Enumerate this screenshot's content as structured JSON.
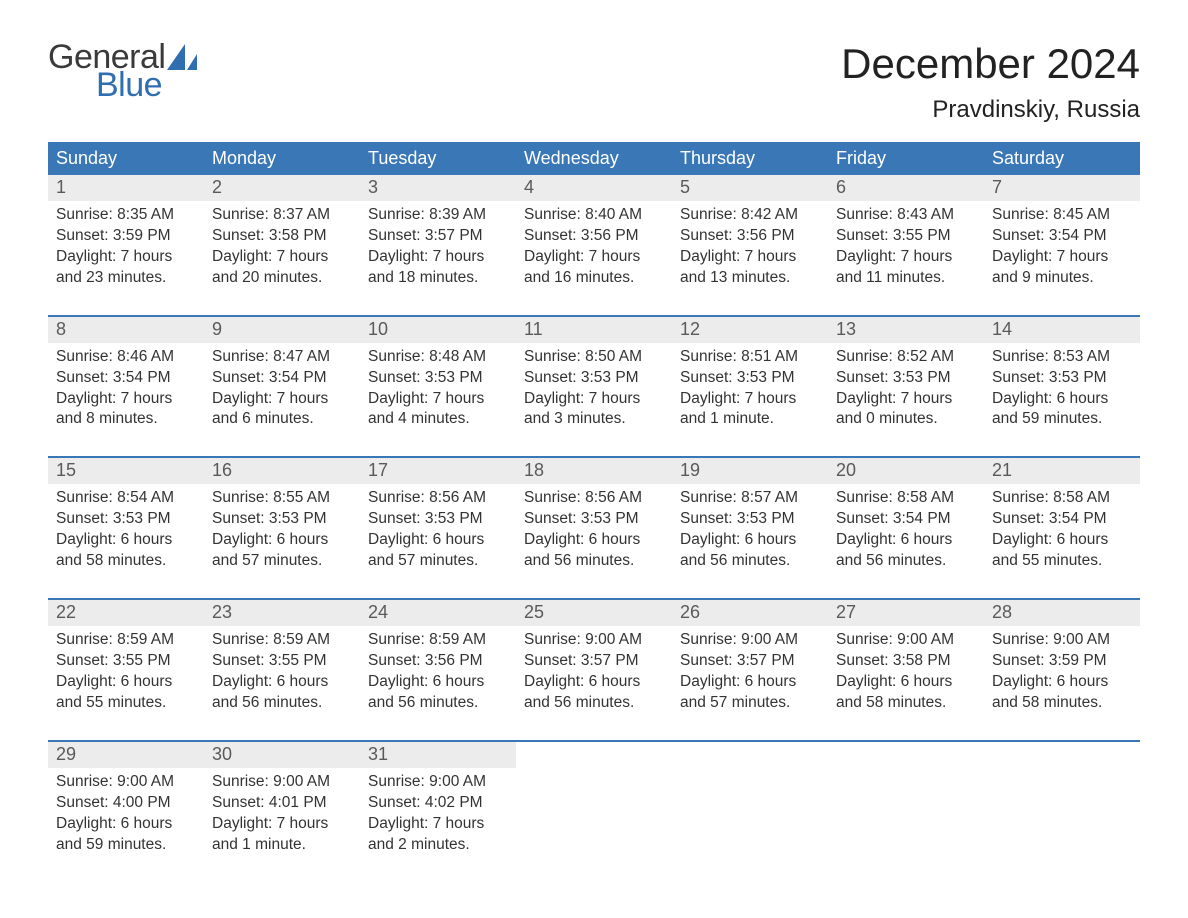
{
  "logo": {
    "text_general": "General",
    "text_blue": "Blue",
    "sail_color": "#2f6fb0",
    "general_color": "#3a3a3a",
    "blue_color": "#2f6fb0"
  },
  "title": "December 2024",
  "location": "Pravdinskiy, Russia",
  "colors": {
    "header_bg": "#3a77b6",
    "header_text": "#ffffff",
    "daynum_bg": "#ececec",
    "daynum_text": "#5a5a5a",
    "body_text": "#333333",
    "week_border": "#3a77b6",
    "page_bg": "#ffffff"
  },
  "typography": {
    "title_fontsize": 42,
    "location_fontsize": 24,
    "dayheader_fontsize": 18,
    "daynum_fontsize": 18,
    "body_fontsize": 15.5,
    "logo_fontsize": 34
  },
  "day_names": [
    "Sunday",
    "Monday",
    "Tuesday",
    "Wednesday",
    "Thursday",
    "Friday",
    "Saturday"
  ],
  "weeks": [
    [
      {
        "n": "1",
        "sunrise": "Sunrise: 8:35 AM",
        "sunset": "Sunset: 3:59 PM",
        "day1": "Daylight: 7 hours",
        "day2": "and 23 minutes."
      },
      {
        "n": "2",
        "sunrise": "Sunrise: 8:37 AM",
        "sunset": "Sunset: 3:58 PM",
        "day1": "Daylight: 7 hours",
        "day2": "and 20 minutes."
      },
      {
        "n": "3",
        "sunrise": "Sunrise: 8:39 AM",
        "sunset": "Sunset: 3:57 PM",
        "day1": "Daylight: 7 hours",
        "day2": "and 18 minutes."
      },
      {
        "n": "4",
        "sunrise": "Sunrise: 8:40 AM",
        "sunset": "Sunset: 3:56 PM",
        "day1": "Daylight: 7 hours",
        "day2": "and 16 minutes."
      },
      {
        "n": "5",
        "sunrise": "Sunrise: 8:42 AM",
        "sunset": "Sunset: 3:56 PM",
        "day1": "Daylight: 7 hours",
        "day2": "and 13 minutes."
      },
      {
        "n": "6",
        "sunrise": "Sunrise: 8:43 AM",
        "sunset": "Sunset: 3:55 PM",
        "day1": "Daylight: 7 hours",
        "day2": "and 11 minutes."
      },
      {
        "n": "7",
        "sunrise": "Sunrise: 8:45 AM",
        "sunset": "Sunset: 3:54 PM",
        "day1": "Daylight: 7 hours",
        "day2": "and 9 minutes."
      }
    ],
    [
      {
        "n": "8",
        "sunrise": "Sunrise: 8:46 AM",
        "sunset": "Sunset: 3:54 PM",
        "day1": "Daylight: 7 hours",
        "day2": "and 8 minutes."
      },
      {
        "n": "9",
        "sunrise": "Sunrise: 8:47 AM",
        "sunset": "Sunset: 3:54 PM",
        "day1": "Daylight: 7 hours",
        "day2": "and 6 minutes."
      },
      {
        "n": "10",
        "sunrise": "Sunrise: 8:48 AM",
        "sunset": "Sunset: 3:53 PM",
        "day1": "Daylight: 7 hours",
        "day2": "and 4 minutes."
      },
      {
        "n": "11",
        "sunrise": "Sunrise: 8:50 AM",
        "sunset": "Sunset: 3:53 PM",
        "day1": "Daylight: 7 hours",
        "day2": "and 3 minutes."
      },
      {
        "n": "12",
        "sunrise": "Sunrise: 8:51 AM",
        "sunset": "Sunset: 3:53 PM",
        "day1": "Daylight: 7 hours",
        "day2": "and 1 minute."
      },
      {
        "n": "13",
        "sunrise": "Sunrise: 8:52 AM",
        "sunset": "Sunset: 3:53 PM",
        "day1": "Daylight: 7 hours",
        "day2": "and 0 minutes."
      },
      {
        "n": "14",
        "sunrise": "Sunrise: 8:53 AM",
        "sunset": "Sunset: 3:53 PM",
        "day1": "Daylight: 6 hours",
        "day2": "and 59 minutes."
      }
    ],
    [
      {
        "n": "15",
        "sunrise": "Sunrise: 8:54 AM",
        "sunset": "Sunset: 3:53 PM",
        "day1": "Daylight: 6 hours",
        "day2": "and 58 minutes."
      },
      {
        "n": "16",
        "sunrise": "Sunrise: 8:55 AM",
        "sunset": "Sunset: 3:53 PM",
        "day1": "Daylight: 6 hours",
        "day2": "and 57 minutes."
      },
      {
        "n": "17",
        "sunrise": "Sunrise: 8:56 AM",
        "sunset": "Sunset: 3:53 PM",
        "day1": "Daylight: 6 hours",
        "day2": "and 57 minutes."
      },
      {
        "n": "18",
        "sunrise": "Sunrise: 8:56 AM",
        "sunset": "Sunset: 3:53 PM",
        "day1": "Daylight: 6 hours",
        "day2": "and 56 minutes."
      },
      {
        "n": "19",
        "sunrise": "Sunrise: 8:57 AM",
        "sunset": "Sunset: 3:53 PM",
        "day1": "Daylight: 6 hours",
        "day2": "and 56 minutes."
      },
      {
        "n": "20",
        "sunrise": "Sunrise: 8:58 AM",
        "sunset": "Sunset: 3:54 PM",
        "day1": "Daylight: 6 hours",
        "day2": "and 56 minutes."
      },
      {
        "n": "21",
        "sunrise": "Sunrise: 8:58 AM",
        "sunset": "Sunset: 3:54 PM",
        "day1": "Daylight: 6 hours",
        "day2": "and 55 minutes."
      }
    ],
    [
      {
        "n": "22",
        "sunrise": "Sunrise: 8:59 AM",
        "sunset": "Sunset: 3:55 PM",
        "day1": "Daylight: 6 hours",
        "day2": "and 55 minutes."
      },
      {
        "n": "23",
        "sunrise": "Sunrise: 8:59 AM",
        "sunset": "Sunset: 3:55 PM",
        "day1": "Daylight: 6 hours",
        "day2": "and 56 minutes."
      },
      {
        "n": "24",
        "sunrise": "Sunrise: 8:59 AM",
        "sunset": "Sunset: 3:56 PM",
        "day1": "Daylight: 6 hours",
        "day2": "and 56 minutes."
      },
      {
        "n": "25",
        "sunrise": "Sunrise: 9:00 AM",
        "sunset": "Sunset: 3:57 PM",
        "day1": "Daylight: 6 hours",
        "day2": "and 56 minutes."
      },
      {
        "n": "26",
        "sunrise": "Sunrise: 9:00 AM",
        "sunset": "Sunset: 3:57 PM",
        "day1": "Daylight: 6 hours",
        "day2": "and 57 minutes."
      },
      {
        "n": "27",
        "sunrise": "Sunrise: 9:00 AM",
        "sunset": "Sunset: 3:58 PM",
        "day1": "Daylight: 6 hours",
        "day2": "and 58 minutes."
      },
      {
        "n": "28",
        "sunrise": "Sunrise: 9:00 AM",
        "sunset": "Sunset: 3:59 PM",
        "day1": "Daylight: 6 hours",
        "day2": "and 58 minutes."
      }
    ],
    [
      {
        "n": "29",
        "sunrise": "Sunrise: 9:00 AM",
        "sunset": "Sunset: 4:00 PM",
        "day1": "Daylight: 6 hours",
        "day2": "and 59 minutes."
      },
      {
        "n": "30",
        "sunrise": "Sunrise: 9:00 AM",
        "sunset": "Sunset: 4:01 PM",
        "day1": "Daylight: 7 hours",
        "day2": "and 1 minute."
      },
      {
        "n": "31",
        "sunrise": "Sunrise: 9:00 AM",
        "sunset": "Sunset: 4:02 PM",
        "day1": "Daylight: 7 hours",
        "day2": "and 2 minutes."
      },
      {
        "empty": true
      },
      {
        "empty": true
      },
      {
        "empty": true
      },
      {
        "empty": true
      }
    ]
  ]
}
